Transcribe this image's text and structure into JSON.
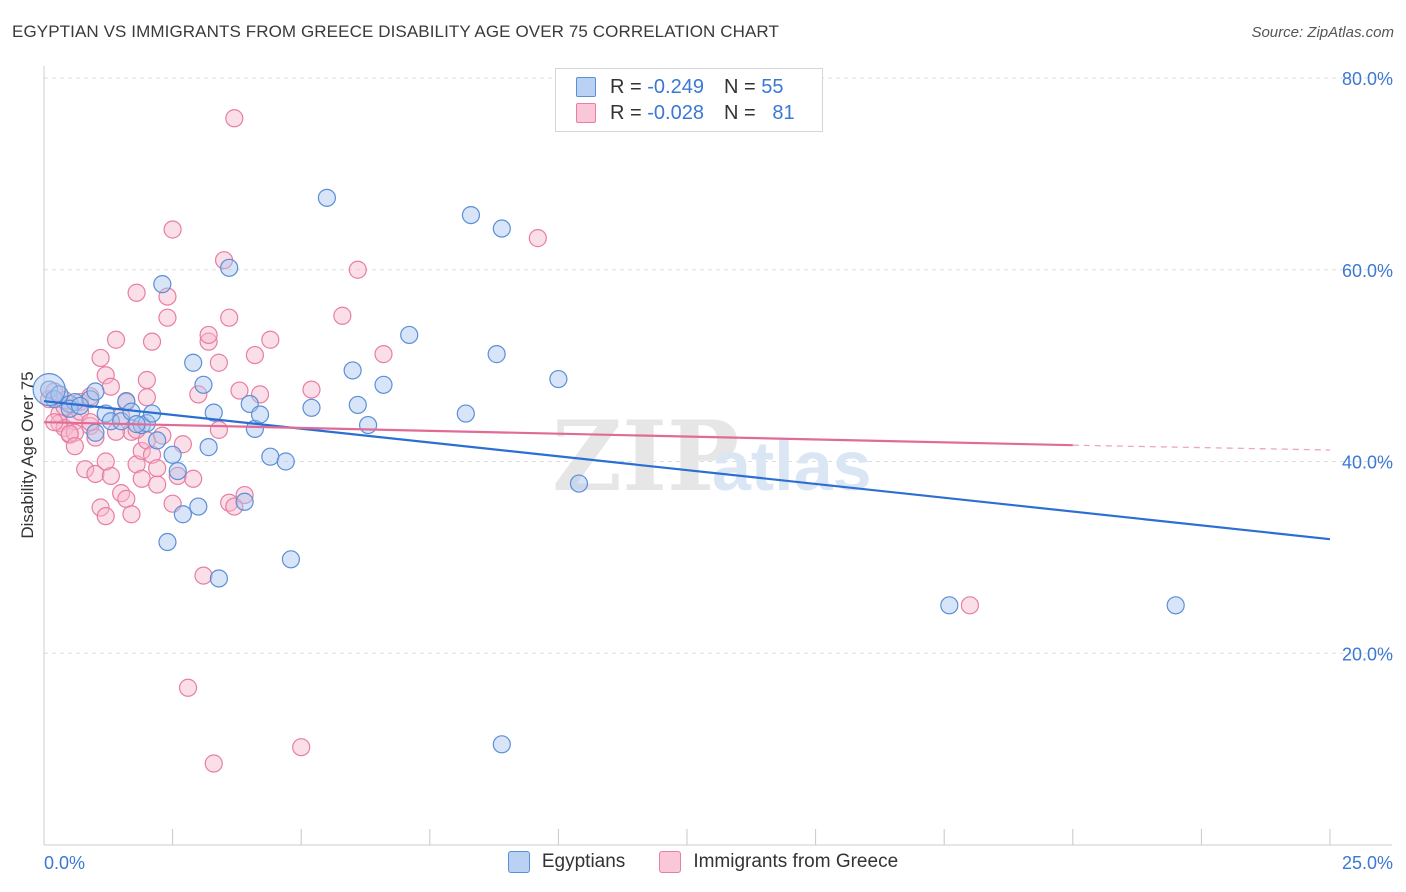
{
  "title": "EGYPTIAN VS IMMIGRANTS FROM GREECE DISABILITY AGE OVER 75 CORRELATION CHART",
  "source": "Source: ZipAtlas.com",
  "watermark": {
    "zip": "ZIP",
    "atlas": "atlas"
  },
  "legend": {
    "rows": [
      {
        "r_label": "R =",
        "r_value": "-0.249",
        "n_label": "N =",
        "n_value": "55"
      },
      {
        "r_label": "R =",
        "r_value": "-0.028",
        "n_label": "N =",
        "n_value": "81"
      }
    ]
  },
  "colors": {
    "blue_fill": "#a9c6f0",
    "blue_stroke": "#5b8fd6",
    "blue_line": "#2a6fd1",
    "pink_fill": "#f6b8cc",
    "pink_stroke": "#e87ea3",
    "pink_line": "#e06b97",
    "tick_text": "#3b78d4",
    "grid": "#dddddd"
  },
  "chart_data": {
    "type": "scatter",
    "title": "EGYPTIAN VS IMMIGRANTS FROM GREECE DISABILITY AGE OVER 75 CORRELATION CHART",
    "xlabel": "",
    "ylabel": "Disability Age Over 75",
    "xlim": [
      0,
      25
    ],
    "ylim": [
      0,
      80
    ],
    "x_tick_labels": [
      "0.0%",
      "25.0%"
    ],
    "y_ticks": [
      20,
      40,
      60,
      80
    ],
    "y_tick_labels": [
      "20.0%",
      "40.0%",
      "60.0%",
      "80.0%"
    ],
    "grid": true,
    "legend_position": "top-center",
    "series": [
      {
        "name": "Egyptians",
        "r": -0.249,
        "n": 55,
        "trend": {
          "x": [
            0,
            25
          ],
          "y": [
            46.3,
            31.9
          ],
          "dashed_from": null
        },
        "points": [
          [
            0.1,
            47.5
          ],
          [
            0.2,
            46.5
          ],
          [
            0.3,
            47
          ],
          [
            0.5,
            46
          ],
          [
            0.6,
            46.2
          ],
          [
            0.9,
            46.5
          ],
          [
            0.5,
            45.5
          ],
          [
            0.7,
            45.8
          ],
          [
            1,
            47.3
          ],
          [
            1.2,
            45
          ],
          [
            1.3,
            44.2
          ],
          [
            1.5,
            44.2
          ],
          [
            1.6,
            46.3
          ],
          [
            1.7,
            45.2
          ],
          [
            1.9,
            43.8
          ],
          [
            2.0,
            44
          ],
          [
            2.1,
            45
          ],
          [
            2.2,
            42.2
          ],
          [
            2.3,
            58.5
          ],
          [
            2.5,
            40.7
          ],
          [
            2.6,
            39
          ],
          [
            2.7,
            34.5
          ],
          [
            2.9,
            50.3
          ],
          [
            3.0,
            35.3
          ],
          [
            3.1,
            48
          ],
          [
            3.2,
            41.5
          ],
          [
            3.3,
            45.1
          ],
          [
            3.4,
            27.8
          ],
          [
            3.6,
            60.2
          ],
          [
            3.9,
            35.8
          ],
          [
            4.0,
            46
          ],
          [
            4.1,
            43.4
          ],
          [
            4.2,
            44.9
          ],
          [
            4.4,
            40.5
          ],
          [
            4.7,
            40
          ],
          [
            4.8,
            29.8
          ],
          [
            5.2,
            45.6
          ],
          [
            5.5,
            67.5
          ],
          [
            6.0,
            49.5
          ],
          [
            6.1,
            45.9
          ],
          [
            6.3,
            43.8
          ],
          [
            6.6,
            48
          ],
          [
            7.1,
            53.2
          ],
          [
            8.2,
            45
          ],
          [
            8.3,
            65.7
          ],
          [
            8.8,
            51.2
          ],
          [
            8.9,
            10.5
          ],
          [
            8.9,
            64.3
          ],
          [
            10.0,
            48.6
          ],
          [
            10.4,
            37.7
          ],
          [
            1.8,
            43.9
          ],
          [
            2.4,
            31.6
          ],
          [
            1.0,
            43
          ],
          [
            17.6,
            25
          ],
          [
            22.0,
            25
          ]
        ]
      },
      {
        "name": "Immigrants from Greece",
        "r": -0.028,
        "n": 81,
        "trend": {
          "x": [
            0,
            20
          ],
          "y": [
            44.1,
            41.7
          ],
          "dashed_from": 20,
          "dashed_to": 25,
          "dashed_end_y": 41.2
        },
        "points": [
          [
            0.1,
            46.5
          ],
          [
            0.2,
            47.3
          ],
          [
            0.3,
            45
          ],
          [
            0.3,
            44
          ],
          [
            0.4,
            45.7
          ],
          [
            0.4,
            43.5
          ],
          [
            0.5,
            42.8
          ],
          [
            0.6,
            44.2
          ],
          [
            0.6,
            43
          ],
          [
            0.7,
            46.2
          ],
          [
            0.8,
            39.2
          ],
          [
            0.9,
            46.8
          ],
          [
            0.9,
            43.7
          ],
          [
            1.0,
            38.7
          ],
          [
            1.0,
            42.5
          ],
          [
            1.1,
            50.8
          ],
          [
            1.1,
            35.2
          ],
          [
            1.2,
            34.3
          ],
          [
            1.2,
            49
          ],
          [
            1.3,
            38.5
          ],
          [
            1.3,
            47.8
          ],
          [
            1.4,
            52.7
          ],
          [
            1.5,
            36.7
          ],
          [
            1.6,
            36.1
          ],
          [
            1.6,
            46.2
          ],
          [
            1.7,
            43.1
          ],
          [
            1.7,
            34.5
          ],
          [
            1.8,
            39.7
          ],
          [
            1.8,
            57.6
          ],
          [
            1.9,
            41.1
          ],
          [
            1.9,
            38.2
          ],
          [
            2.0,
            42.2
          ],
          [
            2.0,
            48.5
          ],
          [
            2.1,
            52.5
          ],
          [
            2.1,
            40.7
          ],
          [
            2.2,
            37.6
          ],
          [
            2.2,
            39.3
          ],
          [
            2.3,
            42.7
          ],
          [
            2.4,
            55
          ],
          [
            2.4,
            57.2
          ],
          [
            2.5,
            64.2
          ],
          [
            2.5,
            35.6
          ],
          [
            2.6,
            38.5
          ],
          [
            2.8,
            16.4
          ],
          [
            2.9,
            38.2
          ],
          [
            3.1,
            28.1
          ],
          [
            3.2,
            52.5
          ],
          [
            3.2,
            53.2
          ],
          [
            3.3,
            8.5
          ],
          [
            3.4,
            50.3
          ],
          [
            3.4,
            43.3
          ],
          [
            3.5,
            61
          ],
          [
            3.6,
            55
          ],
          [
            3.6,
            35.7
          ],
          [
            3.7,
            75.8
          ],
          [
            3.7,
            35.3
          ],
          [
            3.8,
            47.4
          ],
          [
            3.9,
            36.5
          ],
          [
            4.1,
            51.1
          ],
          [
            4.2,
            47
          ],
          [
            4.4,
            52.7
          ],
          [
            5.0,
            10.2
          ],
          [
            5.2,
            47.5
          ],
          [
            5.8,
            55.2
          ],
          [
            6.1,
            60
          ],
          [
            6.6,
            51.2
          ],
          [
            9.6,
            63.3
          ],
          [
            18.0,
            25
          ],
          [
            0.2,
            44.1
          ],
          [
            0.4,
            46.4
          ],
          [
            0.5,
            42.9
          ],
          [
            0.7,
            45.2
          ],
          [
            0.9,
            44.1
          ],
          [
            1.2,
            40
          ],
          [
            1.4,
            43.1
          ],
          [
            1.5,
            44.7
          ],
          [
            1.8,
            43.3
          ],
          [
            2.0,
            46.7
          ],
          [
            2.7,
            41.8
          ],
          [
            3.0,
            47
          ],
          [
            0.6,
            41.6
          ]
        ]
      }
    ]
  },
  "bottom_legend": {
    "items": [
      "Egyptians",
      "Immigrants from Greece"
    ]
  }
}
